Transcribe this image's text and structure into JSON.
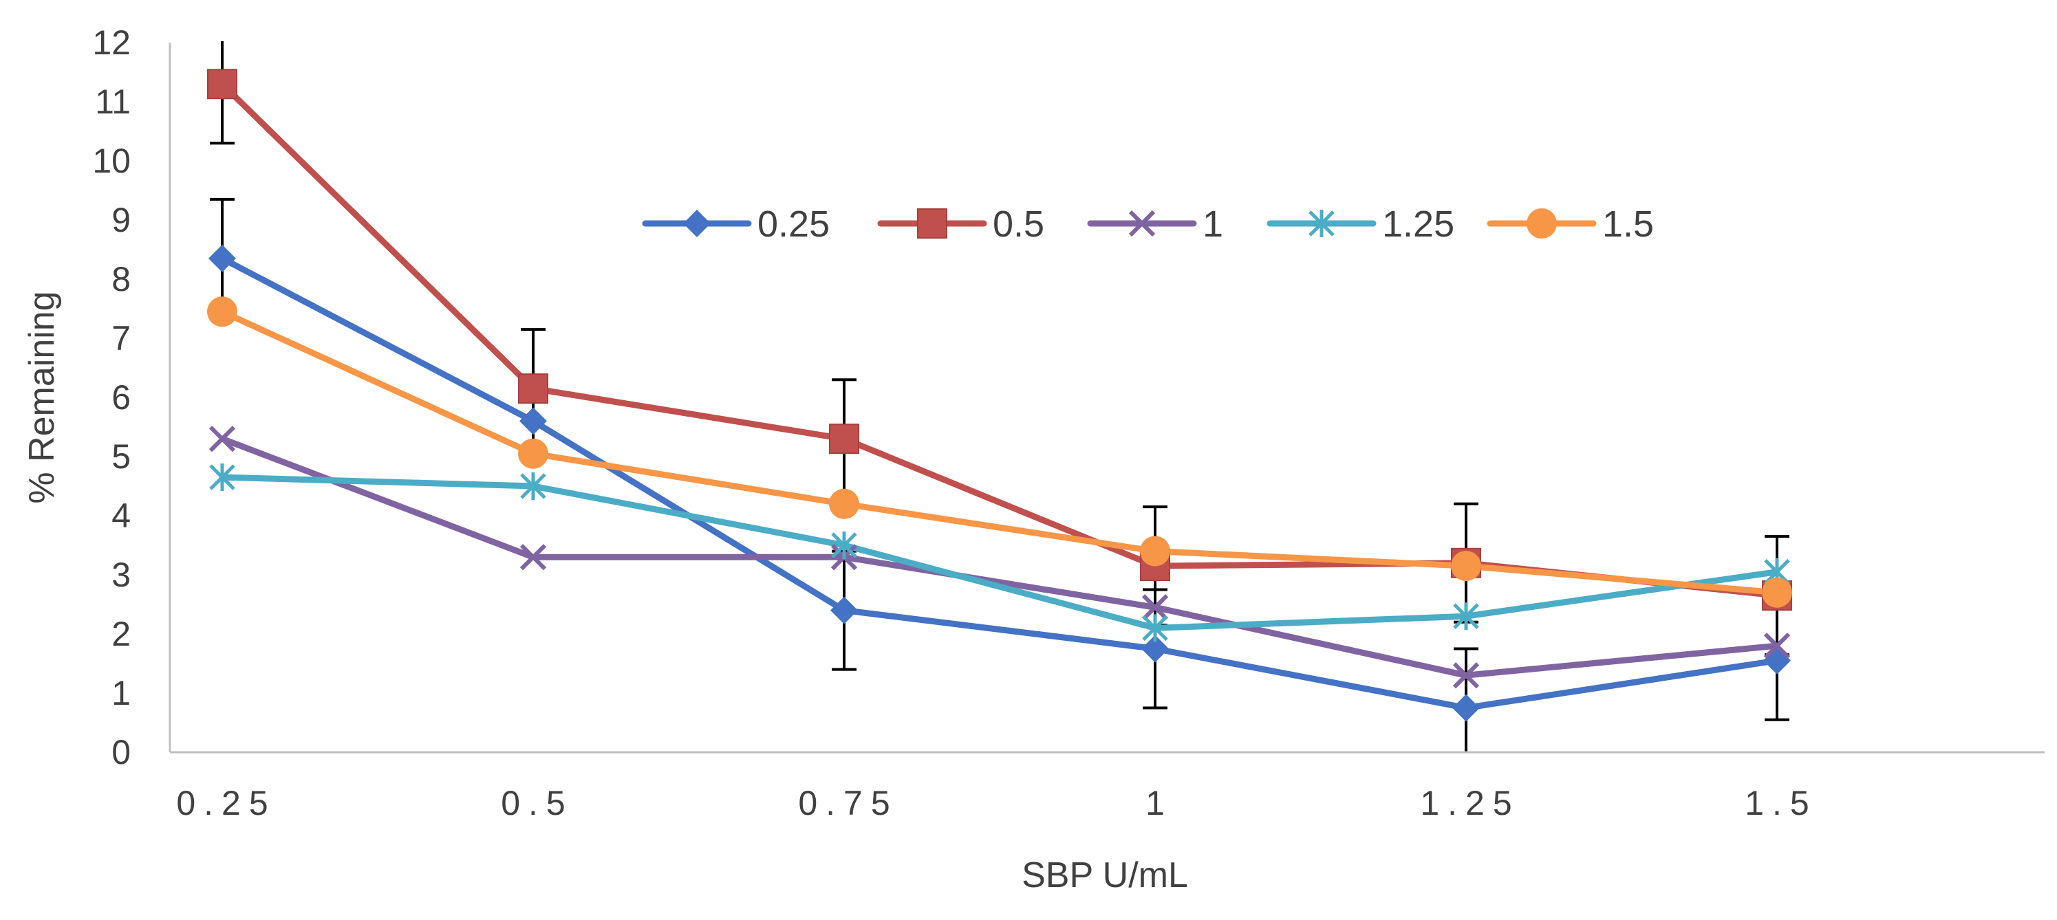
{
  "chart_data": {
    "type": "line",
    "title": "",
    "xlabel": "SBP U/mL",
    "ylabel": "% Remaining",
    "categories": [
      "0.25",
      "0.5",
      "0.75",
      "1",
      "1.25",
      "1.5"
    ],
    "ylim": [
      0,
      12
    ],
    "yticks": [
      "0",
      "1",
      "2",
      "3",
      "4",
      "5",
      "6",
      "7",
      "8",
      "9",
      "10",
      "11",
      "12"
    ],
    "grid": false,
    "legend_position": "top-center",
    "series": [
      {
        "name": "0.25",
        "color": "#4472C4",
        "marker": "diamond",
        "values": [
          8.35,
          5.6,
          2.4,
          1.75,
          0.75,
          1.55
        ],
        "errors": [
          1.0,
          0,
          1.0,
          1.0,
          1.0,
          1.0
        ]
      },
      {
        "name": "0.5",
        "color": "#C0504D",
        "marker": "square",
        "values": [
          11.3,
          6.15,
          5.3,
          3.15,
          3.2,
          2.65
        ],
        "errors": [
          1.0,
          1.0,
          1.0,
          1.0,
          1.0,
          1.0
        ]
      },
      {
        "name": "1",
        "color": "#8064A2",
        "marker": "x",
        "values": [
          5.3,
          3.3,
          3.3,
          2.45,
          1.3,
          1.8
        ],
        "errors": [
          0,
          0,
          0,
          0,
          0,
          0
        ]
      },
      {
        "name": "1.25",
        "color": "#4BACC6",
        "marker": "star",
        "values": [
          4.65,
          4.5,
          3.5,
          2.1,
          2.3,
          3.05
        ],
        "errors": [
          0,
          0,
          0,
          0,
          0,
          0
        ]
      },
      {
        "name": "1.5",
        "color": "#F79646",
        "marker": "circle",
        "values": [
          7.45,
          5.05,
          4.2,
          3.4,
          3.15,
          2.7
        ],
        "errors": [
          0,
          0,
          0,
          0,
          0,
          0
        ]
      }
    ]
  }
}
